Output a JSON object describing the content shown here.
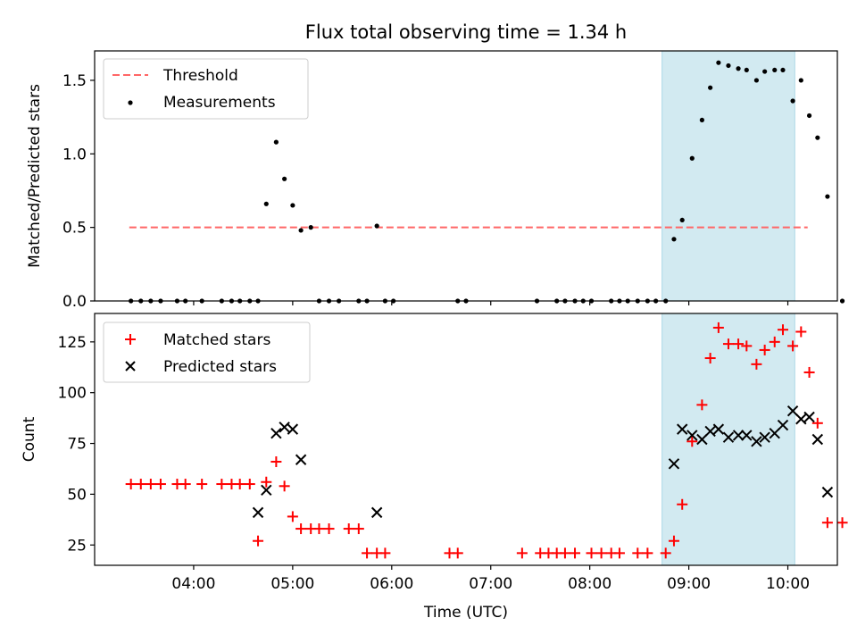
{
  "title": "Flux total observing time = 1.34 h",
  "colors": {
    "shade": "#add8e6",
    "threshold": "#ff6666",
    "matched": "#ff0000",
    "predicted": "#000000",
    "measurement": "#000000"
  },
  "chart_data": [
    {
      "type": "scatter",
      "ylabel": "Matched/Predicted stars",
      "xlim": [
        3.0,
        10.5
      ],
      "ylim": [
        0,
        1.7
      ],
      "yticks": [
        0.0,
        0.5,
        1.0,
        1.5
      ],
      "ytick_labels": [
        "0.0",
        "0.5",
        "1.0",
        "1.5"
      ],
      "grid": false,
      "legend_position": "upper-left",
      "legend": [
        {
          "label": "Threshold",
          "style": "dashed-line"
        },
        {
          "label": "Measurements",
          "style": "dot"
        }
      ],
      "shaded_interval": [
        8.73,
        10.07
      ],
      "threshold_line": {
        "y": 0.5,
        "x_range": [
          "03:21",
          "10:12"
        ]
      },
      "series": [
        {
          "name": "Measurements",
          "points": [
            [
              "03:22",
              0
            ],
            [
              "03:28",
              0
            ],
            [
              "03:34",
              0
            ],
            [
              "03:40",
              0
            ],
            [
              "03:50",
              0
            ],
            [
              "03:55",
              0
            ],
            [
              "04:05",
              0
            ],
            [
              "04:17",
              0
            ],
            [
              "04:23",
              0
            ],
            [
              "04:28",
              0
            ],
            [
              "04:34",
              0
            ],
            [
              "04:39",
              0
            ],
            [
              "04:44",
              0.66
            ],
            [
              "04:50",
              1.08
            ],
            [
              "04:55",
              0.83
            ],
            [
              "05:00",
              0.65
            ],
            [
              "05:05",
              0.48
            ],
            [
              "05:11",
              0.5
            ],
            [
              "05:16",
              0
            ],
            [
              "05:22",
              0
            ],
            [
              "05:28",
              0
            ],
            [
              "05:40",
              0
            ],
            [
              "05:45",
              0
            ],
            [
              "05:51",
              0.51
            ],
            [
              "05:56",
              0
            ],
            [
              "06:01",
              0
            ],
            [
              "06:40",
              0
            ],
            [
              "06:45",
              0
            ],
            [
              "07:28",
              0
            ],
            [
              "07:40",
              0
            ],
            [
              "07:45",
              0
            ],
            [
              "07:51",
              0
            ],
            [
              "07:56",
              0
            ],
            [
              "08:01",
              0
            ],
            [
              "08:13",
              0
            ],
            [
              "08:18",
              0
            ],
            [
              "08:23",
              0
            ],
            [
              "08:29",
              0
            ],
            [
              "08:35",
              0
            ],
            [
              "08:40",
              0
            ],
            [
              "08:46",
              0
            ],
            [
              "08:51",
              0.42
            ],
            [
              "08:56",
              0.55
            ],
            [
              "09:02",
              0.97
            ],
            [
              "09:08",
              1.23
            ],
            [
              "09:13",
              1.45
            ],
            [
              "09:18",
              1.62
            ],
            [
              "09:24",
              1.6
            ],
            [
              "09:30",
              1.58
            ],
            [
              "09:35",
              1.57
            ],
            [
              "09:41",
              1.5
            ],
            [
              "09:46",
              1.56
            ],
            [
              "09:52",
              1.57
            ],
            [
              "09:57",
              1.57
            ],
            [
              "10:03",
              1.36
            ],
            [
              "10:08",
              1.5
            ],
            [
              "10:13",
              1.26
            ],
            [
              "10:18",
              1.11
            ],
            [
              "10:24",
              0.71
            ],
            [
              "10:33",
              0
            ]
          ]
        }
      ]
    },
    {
      "type": "scatter",
      "xlabel": "Time (UTC)",
      "ylabel": "Count",
      "xlim": [
        3.0,
        10.5
      ],
      "ylim": [
        15,
        139
      ],
      "yticks": [
        25,
        50,
        75,
        100,
        125
      ],
      "ytick_labels": [
        "25",
        "50",
        "75",
        "100",
        "125"
      ],
      "xticks": [
        4,
        5,
        6,
        7,
        8,
        9,
        10
      ],
      "xtick_labels": [
        "04:00",
        "05:00",
        "06:00",
        "07:00",
        "08:00",
        "09:00",
        "10:00"
      ],
      "grid": false,
      "legend_position": "upper-left",
      "legend": [
        {
          "label": "Matched stars",
          "style": "plus"
        },
        {
          "label": "Predicted stars",
          "style": "cross"
        }
      ],
      "shaded_interval": [
        8.73,
        10.07
      ],
      "series": [
        {
          "name": "Matched stars",
          "points": [
            [
              "03:22",
              55
            ],
            [
              "03:28",
              55
            ],
            [
              "03:34",
              55
            ],
            [
              "03:40",
              55
            ],
            [
              "03:50",
              55
            ],
            [
              "03:55",
              55
            ],
            [
              "04:05",
              55
            ],
            [
              "04:17",
              55
            ],
            [
              "04:23",
              55
            ],
            [
              "04:28",
              55
            ],
            [
              "04:34",
              55
            ],
            [
              "04:39",
              27
            ],
            [
              "04:44",
              56
            ],
            [
              "04:50",
              66
            ],
            [
              "04:55",
              54
            ],
            [
              "05:00",
              39
            ],
            [
              "05:05",
              33
            ],
            [
              "05:11",
              33
            ],
            [
              "05:16",
              33
            ],
            [
              "05:22",
              33
            ],
            [
              "05:34",
              33
            ],
            [
              "05:40",
              33
            ],
            [
              "05:45",
              21
            ],
            [
              "05:51",
              21
            ],
            [
              "05:56",
              21
            ],
            [
              "06:35",
              21
            ],
            [
              "06:40",
              21
            ],
            [
              "07:19",
              21
            ],
            [
              "07:30",
              21
            ],
            [
              "07:35",
              21
            ],
            [
              "07:40",
              21
            ],
            [
              "07:45",
              21
            ],
            [
              "07:51",
              21
            ],
            [
              "08:01",
              21
            ],
            [
              "08:07",
              21
            ],
            [
              "08:13",
              21
            ],
            [
              "08:18",
              21
            ],
            [
              "08:29",
              21
            ],
            [
              "08:35",
              21
            ],
            [
              "08:46",
              21
            ],
            [
              "08:51",
              27
            ],
            [
              "08:56",
              45
            ],
            [
              "09:02",
              76
            ],
            [
              "09:08",
              94
            ],
            [
              "09:13",
              117
            ],
            [
              "09:18",
              132
            ],
            [
              "09:24",
              124
            ],
            [
              "09:30",
              124
            ],
            [
              "09:35",
              123
            ],
            [
              "09:41",
              114
            ],
            [
              "09:46",
              121
            ],
            [
              "09:52",
              125
            ],
            [
              "09:57",
              131
            ],
            [
              "10:03",
              123
            ],
            [
              "10:08",
              130
            ],
            [
              "10:13",
              110
            ],
            [
              "10:18",
              85
            ],
            [
              "10:24",
              36
            ],
            [
              "10:33",
              36
            ]
          ]
        },
        {
          "name": "Predicted stars",
          "points": [
            [
              "04:39",
              41
            ],
            [
              "04:44",
              52
            ],
            [
              "04:50",
              80
            ],
            [
              "04:55",
              83
            ],
            [
              "05:00",
              82
            ],
            [
              "05:05",
              67
            ],
            [
              "05:51",
              41
            ],
            [
              "08:51",
              65
            ],
            [
              "08:56",
              82
            ],
            [
              "09:02",
              79
            ],
            [
              "09:08",
              77
            ],
            [
              "09:13",
              81
            ],
            [
              "09:18",
              82
            ],
            [
              "09:24",
              78
            ],
            [
              "09:30",
              79
            ],
            [
              "09:35",
              79
            ],
            [
              "09:41",
              76
            ],
            [
              "09:46",
              78
            ],
            [
              "09:52",
              80
            ],
            [
              "09:57",
              84
            ],
            [
              "10:03",
              91
            ],
            [
              "10:08",
              87
            ],
            [
              "10:13",
              88
            ],
            [
              "10:18",
              77
            ],
            [
              "10:24",
              51
            ]
          ]
        }
      ]
    }
  ]
}
